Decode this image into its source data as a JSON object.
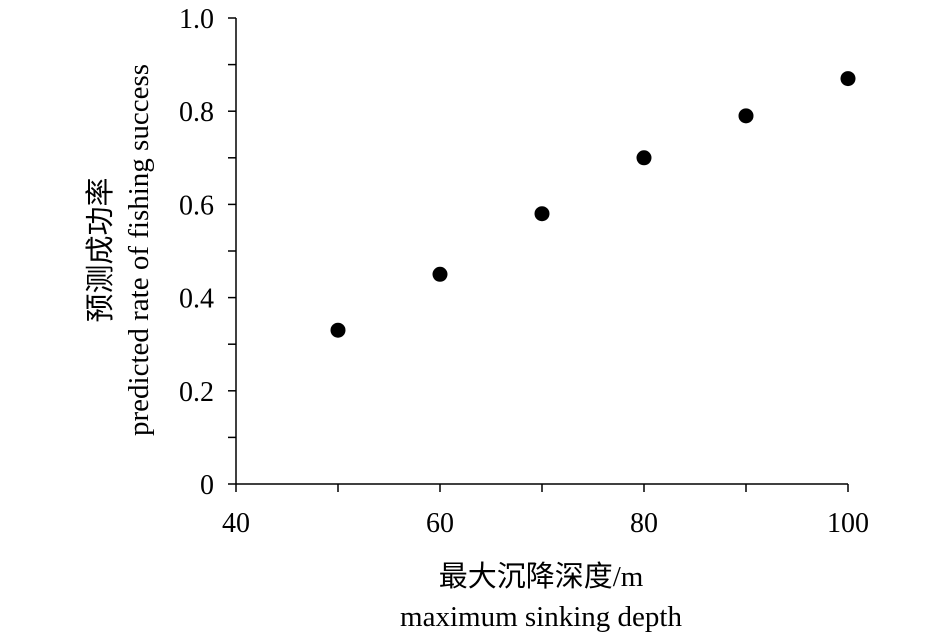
{
  "chart_data": {
    "type": "scatter",
    "title": "",
    "xlabel": "最大沉降深度/m",
    "xlabel_en": "maximum sinking depth",
    "ylabel": "预测成功率",
    "ylabel_en": "predicted rate of fishing success",
    "xlim": [
      40,
      100
    ],
    "ylim": [
      0,
      1.0
    ],
    "x_ticks": [
      40,
      60,
      80,
      100
    ],
    "x_tick_labels": [
      "40",
      "60",
      "80",
      "100"
    ],
    "y_ticks": [
      0,
      0.2,
      0.4,
      0.6,
      0.8,
      1.0
    ],
    "y_tick_labels": [
      "0",
      "0.2",
      "0.4",
      "0.6",
      "0.8",
      "1.0"
    ],
    "grid": false,
    "marker_color": "#000000",
    "series": [
      {
        "x": [
          50,
          60,
          70,
          80,
          90,
          100
        ],
        "y": [
          0.33,
          0.45,
          0.58,
          0.7,
          0.79,
          0.87
        ]
      }
    ]
  }
}
